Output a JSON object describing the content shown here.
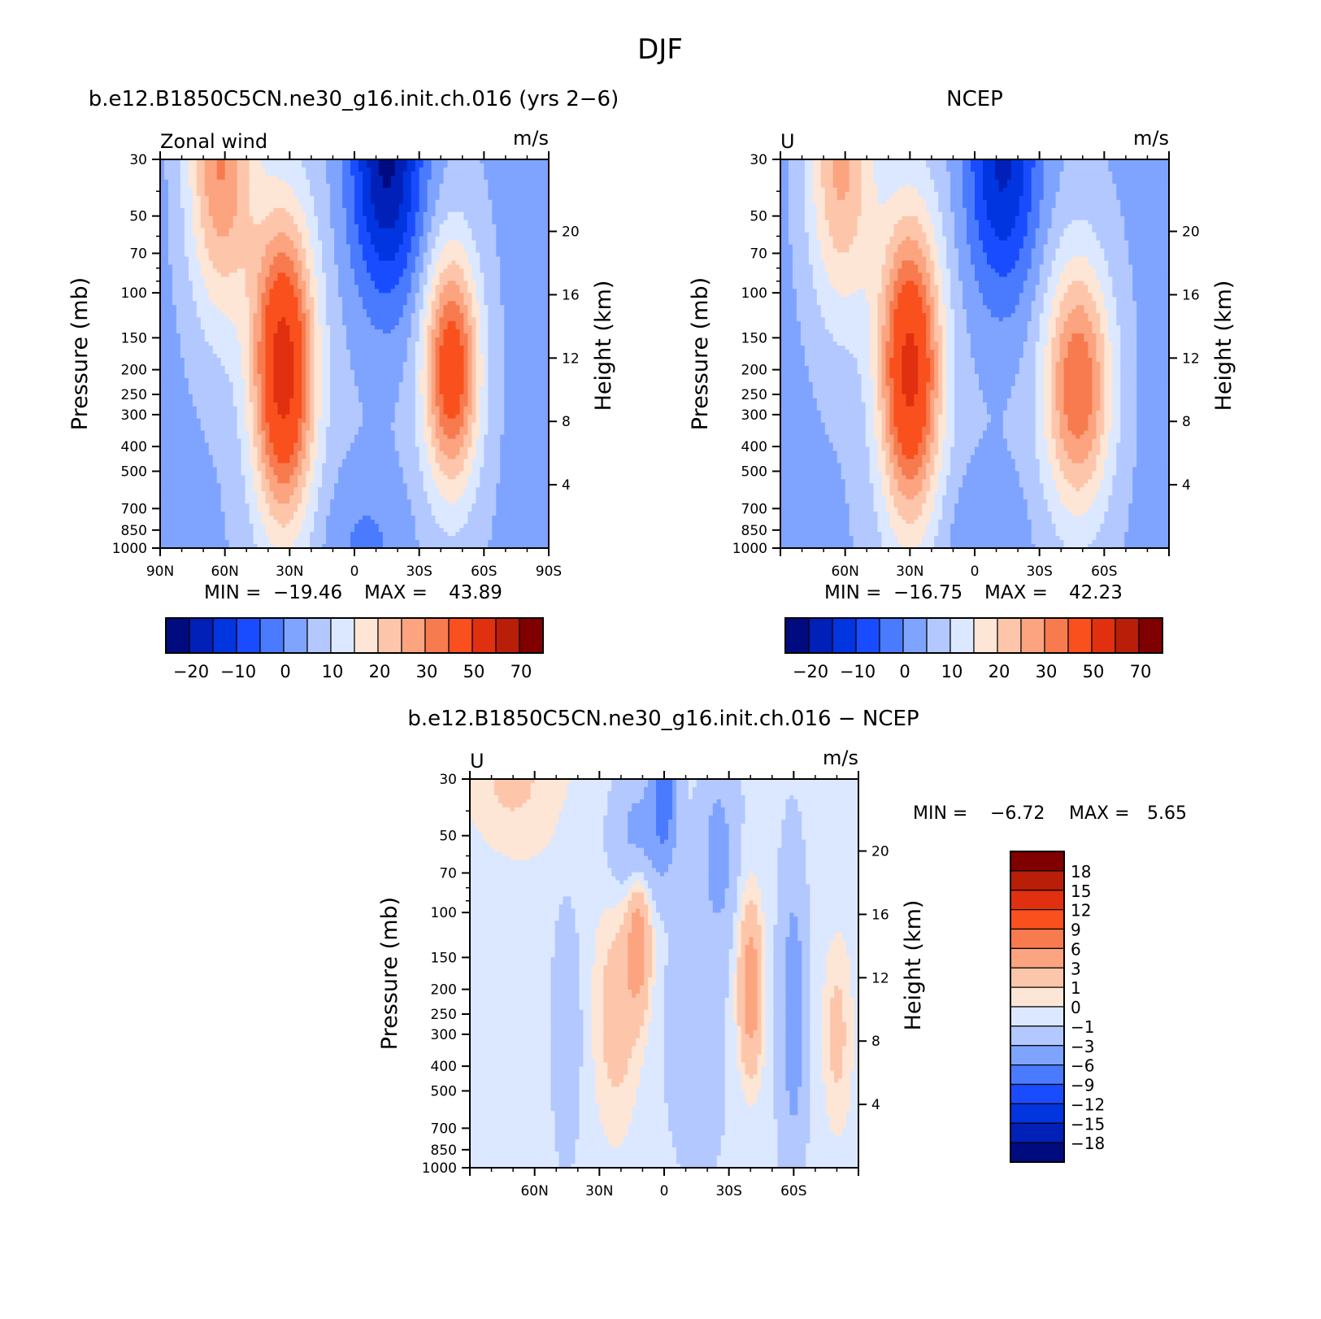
{
  "figure": {
    "title": "DJF"
  },
  "colors": {
    "abs_levels": [
      "#000b80",
      "#0020b8",
      "#0035e0",
      "#1a4cff",
      "#4a7bff",
      "#7ea4ff",
      "#b2c8ff",
      "#dbe8ff",
      "#fde6d6",
      "#fdc6ab",
      "#fba47f",
      "#f77b4f",
      "#f9501e",
      "#e03010",
      "#b81e08",
      "#800000"
    ],
    "diff_levels": [
      "#000b80",
      "#0020b8",
      "#0035e0",
      "#1a4cff",
      "#4a7bff",
      "#7ea4ff",
      "#b2c8ff",
      "#dbe8ff",
      "#fde6d6",
      "#fdc6ab",
      "#fba47f",
      "#f77b4f",
      "#f9501e",
      "#e03010",
      "#b81e08",
      "#800000"
    ]
  },
  "chart_data": [
    {
      "type": "heatmap",
      "id": "panel-model",
      "title": "b.e12.B1850C5CN.ne30_g16.init.ch.016 (yrs 2−6)",
      "left_label": "Zonal wind",
      "units": "m/s",
      "ylabel": "Pressure (mb)",
      "y2label": "Height (km)",
      "y_scale": "log",
      "ylim": [
        1000,
        30
      ],
      "xlim": [
        90,
        -90
      ],
      "y_ticks": [
        30,
        50,
        70,
        100,
        150,
        200,
        250,
        300,
        400,
        500,
        700,
        850,
        1000
      ],
      "y_tick_labels": [
        "30",
        "50",
        "70",
        "100",
        "150",
        "200",
        "250",
        "300",
        "400",
        "500",
        "700",
        "850",
        "1000"
      ],
      "y2_ticks": [
        4,
        8,
        12,
        16,
        20
      ],
      "x_tick_values": [
        90,
        60,
        30,
        0,
        -30,
        -60,
        -90
      ],
      "x_tick_labels": [
        "90N",
        "60N",
        "30N",
        "0",
        "30S",
        "60S",
        "90S"
      ],
      "min_label": "MIN =",
      "min_value": "−19.46",
      "max_label": "MAX =",
      "max_value": "43.89",
      "colorbar_labels": [
        "−20",
        "−10",
        "0",
        "10",
        "20",
        "30",
        "50",
        "70"
      ],
      "features": [
        {
          "lat": 33,
          "p": 200,
          "amp": 44,
          "slat": 10,
          "sz": 0.95
        },
        {
          "lat": -45,
          "p": 200,
          "amp": 36,
          "slat": 9,
          "sz": 0.75
        },
        {
          "lat": 62,
          "p": 30,
          "amp": 26,
          "slat": 11,
          "sz": 1.0
        },
        {
          "lat": -15,
          "p": 30,
          "amp": -27,
          "slat": 12,
          "sz": 0.9
        },
        {
          "lat": -5,
          "p": 1000,
          "amp": -7,
          "slat": 14,
          "sz": 0.5
        }
      ]
    },
    {
      "type": "heatmap",
      "id": "panel-ncep",
      "title": "NCEP",
      "left_label": "U",
      "units": "m/s",
      "ylabel": "Pressure (mb)",
      "y2label": "Height (km)",
      "y_scale": "log",
      "ylim": [
        1000,
        30
      ],
      "xlim": [
        90,
        -90
      ],
      "y_ticks": [
        30,
        50,
        70,
        100,
        150,
        200,
        250,
        300,
        400,
        500,
        700,
        850,
        1000
      ],
      "y_tick_labels": [
        "30",
        "50",
        "70",
        "100",
        "150",
        "200",
        "250",
        "300",
        "400",
        "500",
        "700",
        "850",
        "1000"
      ],
      "y2_ticks": [
        4,
        8,
        12,
        16,
        20
      ],
      "x_tick_values": [
        60,
        30,
        0,
        -30,
        -60
      ],
      "x_tick_labels": [
        "60N",
        "30N",
        "0",
        "30S",
        "60S"
      ],
      "min_label": "MIN =",
      "min_value": "−16.75",
      "max_label": "MAX =",
      "max_value": "42.23",
      "colorbar_labels": [
        "−20",
        "−10",
        "0",
        "10",
        "20",
        "30",
        "50",
        "70"
      ],
      "features": [
        {
          "lat": 30,
          "p": 200,
          "amp": 42,
          "slat": 10,
          "sz": 0.95
        },
        {
          "lat": -48,
          "p": 230,
          "amp": 30,
          "slat": 11,
          "sz": 0.8
        },
        {
          "lat": 62,
          "p": 30,
          "amp": 22,
          "slat": 11,
          "sz": 1.0
        },
        {
          "lat": -13,
          "p": 30,
          "amp": -22,
          "slat": 12,
          "sz": 0.9
        },
        {
          "lat": -5,
          "p": 1000,
          "amp": -6,
          "slat": 14,
          "sz": 0.5
        }
      ]
    },
    {
      "type": "heatmap",
      "id": "panel-diff",
      "title": "b.e12.B1850C5CN.ne30_g16.init.ch.016 − NCEP",
      "left_label": "U",
      "units": "m/s",
      "ylabel": "Pressure (mb)",
      "y2label": "Height (km)",
      "y_scale": "log",
      "ylim": [
        1000,
        30
      ],
      "xlim": [
        90,
        -90
      ],
      "y_ticks": [
        30,
        50,
        70,
        100,
        150,
        200,
        250,
        300,
        400,
        500,
        700,
        850,
        1000
      ],
      "y_tick_labels": [
        "30",
        "50",
        "70",
        "100",
        "150",
        "200",
        "250",
        "300",
        "400",
        "500",
        "700",
        "850",
        "1000"
      ],
      "y2_ticks": [
        4,
        8,
        12,
        16,
        20
      ],
      "x_tick_values": [
        60,
        30,
        0,
        -30,
        -60
      ],
      "x_tick_labels": [
        "60N",
        "30N",
        "0",
        "30S",
        "60S"
      ],
      "min_label": "MIN =",
      "min_value": "−6.72",
      "max_label": "MAX =",
      "max_value": "5.65",
      "colorbar_labels": [
        "18",
        "15",
        "12",
        "9",
        "6",
        "3",
        "1",
        "0",
        "−1",
        "−3",
        "−6",
        "−9",
        "−12",
        "−15",
        "−18"
      ],
      "features": [
        {
          "lat": 12,
          "p": 130,
          "amp": 5,
          "slat": 4,
          "sz": 0.45
        },
        {
          "lat": -40,
          "p": 200,
          "amp": 5.5,
          "slat": 4,
          "sz": 0.55
        },
        {
          "lat": 22,
          "p": 250,
          "amp": 2.5,
          "slat": 6,
          "sz": 0.6
        },
        {
          "lat": 72,
          "p": 30,
          "amp": 2,
          "slat": 16,
          "sz": 0.5
        },
        {
          "lat": -80,
          "p": 300,
          "amp": 2,
          "slat": 4,
          "sz": 0.5
        },
        {
          "lat": 0,
          "p": 35,
          "amp": -6.7,
          "slat": 4,
          "sz": 0.4
        },
        {
          "lat": 12,
          "p": 50,
          "amp": -3.5,
          "slat": 9,
          "sz": 0.4
        },
        {
          "lat": -25,
          "p": 60,
          "amp": -3.5,
          "slat": 5,
          "sz": 0.5
        },
        {
          "lat": -60,
          "p": 250,
          "amp": -4,
          "slat": 4,
          "sz": 0.9
        },
        {
          "lat": 45,
          "p": 300,
          "amp": -1.8,
          "slat": 5,
          "sz": 0.9
        },
        {
          "lat": -12,
          "p": 300,
          "amp": -1.5,
          "slat": 8,
          "sz": 0.7
        }
      ]
    }
  ]
}
